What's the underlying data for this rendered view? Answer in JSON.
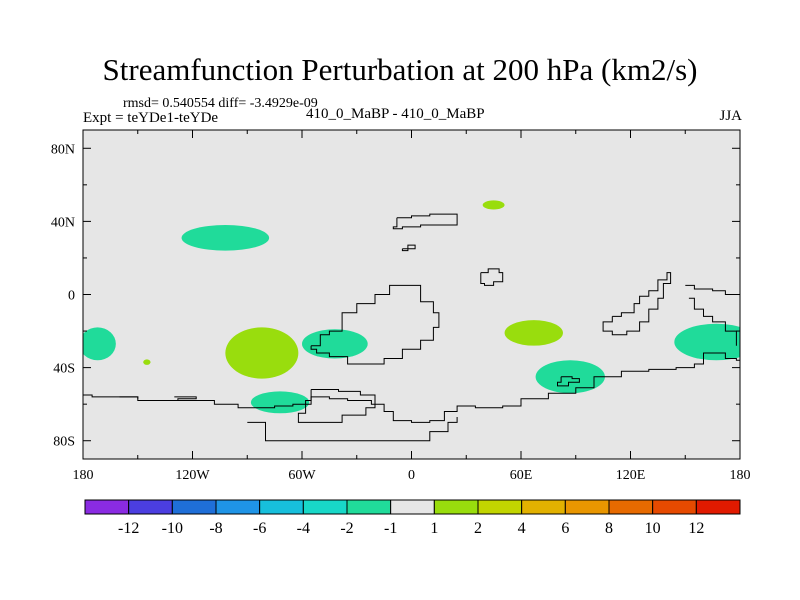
{
  "header": {
    "title": "Streamfunction Perturbation at 200 hPa (km2/s)",
    "stats": "rmsd= 0.540554  diff= -3.4929e-09",
    "expt": "Expt = teYDe1-teYDe",
    "center": "410_0_MaBP - 410_0_MaBP",
    "season": "JJA"
  },
  "chart_data": {
    "type": "heatmap",
    "title": "Streamfunction Perturbation at 200 hPa (km2/s)",
    "x": {
      "range": [
        -180,
        180
      ],
      "ticks": [
        -180,
        -120,
        -60,
        0,
        60,
        120,
        180
      ],
      "tick_labels": [
        "180",
        "120W",
        "60W",
        "0",
        "60E",
        "120E",
        "180"
      ]
    },
    "y": {
      "range": [
        -90,
        90
      ],
      "ticks": [
        80,
        40,
        0,
        -40,
        -80
      ],
      "tick_labels": [
        "80N",
        "40N",
        "0",
        "40S",
        "80S"
      ]
    },
    "background_level": "-1 to 1",
    "anomalies": [
      {
        "lon": -102,
        "lat": 31,
        "rlon": 24,
        "rlat": 7,
        "class": "-2 to -1"
      },
      {
        "lon": -172,
        "lat": -27,
        "rlon": 10,
        "rlat": 9,
        "class": "-2 to -1"
      },
      {
        "lon": -82,
        "lat": -32,
        "rlon": 20,
        "rlat": 14,
        "class": "1 to 2"
      },
      {
        "lon": -145,
        "lat": -37,
        "rlon": 2,
        "rlat": 1.5,
        "class": "1 to 2"
      },
      {
        "lon": -42,
        "lat": -27,
        "rlon": 18,
        "rlat": 8,
        "class": "-2 to -1"
      },
      {
        "lon": -72,
        "lat": -59,
        "rlon": 16,
        "rlat": 6,
        "class": "-2 to -1"
      },
      {
        "lon": 45,
        "lat": 49,
        "rlon": 6,
        "rlat": 2.5,
        "class": "1 to 2"
      },
      {
        "lon": 67,
        "lat": -21,
        "rlon": 16,
        "rlat": 7,
        "class": "1 to 2"
      },
      {
        "lon": 87,
        "lat": -45,
        "rlon": 19,
        "rlat": 9,
        "class": "-2 to -1"
      },
      {
        "lon": 167,
        "lat": -26,
        "rlon": 23,
        "rlat": 10,
        "class": "-2 to -1"
      }
    ],
    "colorbar": {
      "colors": [
        "#8a2be2",
        "#4b3ee0",
        "#1f6fd8",
        "#1f94e6",
        "#17bfdc",
        "#18d8c8",
        "#20db9a",
        "#e6e6e6",
        "#99dd0d",
        "#c2d500",
        "#e2b100",
        "#e99600",
        "#e76a00",
        "#e64a00",
        "#e11a00"
      ],
      "labels": [
        "-12",
        "-10",
        "-8",
        "-6",
        "-4",
        "-2",
        "-1",
        "1",
        "2",
        "4",
        "6",
        "8",
        "10",
        "12"
      ],
      "background_color": "#e6e6e6",
      "negative_color": "#20db9a",
      "positive_color": "#99dd0d"
    },
    "coastline": [
      [
        [
          -180,
          -55
        ],
        [
          -175,
          -56
        ],
        [
          -160,
          -56
        ],
        [
          -150,
          -58
        ],
        [
          -120,
          -58
        ],
        [
          -108,
          -60
        ],
        [
          -95,
          -62
        ],
        [
          -85,
          -62
        ],
        [
          -75,
          -61
        ],
        [
          -65,
          -60
        ],
        [
          -55,
          -56
        ],
        [
          -45,
          -57
        ],
        [
          -35,
          -58
        ],
        [
          -22,
          -60
        ],
        [
          -15,
          -64
        ],
        [
          -10,
          -69
        ],
        [
          0,
          -70
        ],
        [
          10,
          -69
        ],
        [
          18,
          -64
        ],
        [
          25,
          -61
        ],
        [
          35,
          -62
        ],
        [
          50,
          -61
        ],
        [
          60,
          -57
        ],
        [
          75,
          -54
        ],
        [
          90,
          -51
        ],
        [
          100,
          -45
        ],
        [
          115,
          -42
        ],
        [
          130,
          -41
        ],
        [
          145,
          -40
        ],
        [
          155,
          -38
        ],
        [
          160,
          -32
        ],
        [
          165,
          -32
        ],
        [
          172,
          -35
        ],
        [
          178,
          -36
        ],
        [
          180,
          -36
        ]
      ],
      [
        [
          -90,
          -70
        ],
        [
          -80,
          -80
        ],
        [
          0,
          -80
        ],
        [
          10,
          -75
        ],
        [
          20,
          -70
        ],
        [
          25,
          -67
        ]
      ],
      [
        [
          -55,
          -52
        ],
        [
          -40,
          -53
        ],
        [
          -28,
          -55
        ],
        [
          -20,
          -62
        ],
        [
          -25,
          -66
        ],
        [
          -38,
          -70
        ],
        [
          -50,
          -70
        ],
        [
          -62,
          -65
        ],
        [
          -58,
          -58
        ],
        [
          -55,
          -52
        ]
      ],
      [
        [
          -55,
          -28
        ],
        [
          -50,
          -22
        ],
        [
          -45,
          -20
        ],
        [
          -38,
          -10
        ],
        [
          -30,
          -5
        ],
        [
          -20,
          0
        ],
        [
          -12,
          5
        ],
        [
          -5,
          5
        ],
        [
          5,
          -4
        ],
        [
          12,
          -10
        ],
        [
          15,
          -18
        ],
        [
          12,
          -25
        ],
        [
          5,
          -30
        ],
        [
          -5,
          -35
        ],
        [
          -15,
          -38
        ],
        [
          -25,
          -38
        ],
        [
          -35,
          -34
        ],
        [
          -45,
          -32
        ],
        [
          -52,
          -30
        ],
        [
          -55,
          -28
        ]
      ],
      [
        [
          -8,
          42
        ],
        [
          0,
          43
        ],
        [
          10,
          44
        ],
        [
          20,
          44
        ],
        [
          25,
          42
        ],
        [
          25,
          38
        ],
        [
          15,
          38
        ],
        [
          5,
          37
        ],
        [
          -5,
          36
        ],
        [
          -10,
          37
        ],
        [
          -8,
          42
        ]
      ],
      [
        [
          -5,
          25
        ],
        [
          -2,
          27
        ],
        [
          2,
          25
        ],
        [
          -2,
          24
        ],
        [
          -5,
          25
        ]
      ],
      [
        [
          38,
          12
        ],
        [
          42,
          14
        ],
        [
          48,
          12
        ],
        [
          50,
          7
        ],
        [
          45,
          5
        ],
        [
          40,
          6
        ],
        [
          38,
          12
        ]
      ],
      [
        [
          110,
          -12
        ],
        [
          115,
          -10
        ],
        [
          122,
          -5
        ],
        [
          125,
          -1
        ],
        [
          130,
          2
        ],
        [
          135,
          8
        ],
        [
          140,
          12
        ],
        [
          142,
          6
        ],
        [
          138,
          -2
        ],
        [
          135,
          -8
        ],
        [
          130,
          -15
        ],
        [
          125,
          -20
        ],
        [
          118,
          -22
        ],
        [
          110,
          -20
        ],
        [
          105,
          -15
        ],
        [
          110,
          -12
        ]
      ],
      [
        [
          150,
          5
        ],
        [
          155,
          3
        ],
        [
          165,
          2
        ],
        [
          172,
          0
        ],
        [
          180,
          -2
        ]
      ],
      [
        [
          152,
          -2
        ],
        [
          155,
          -8
        ],
        [
          160,
          -12
        ],
        [
          165,
          -15
        ],
        [
          172,
          -20
        ],
        [
          178,
          -28
        ]
      ],
      [
        [
          -160,
          -56
        ],
        [
          -150,
          -57
        ]
      ],
      [
        [
          -130,
          -56
        ],
        [
          -120,
          -56
        ],
        [
          -118,
          -57
        ],
        [
          -128,
          -58
        ]
      ],
      [
        [
          82,
          -45
        ],
        [
          88,
          -46
        ],
        [
          92,
          -48
        ],
        [
          86,
          -50
        ],
        [
          80,
          -48
        ],
        [
          82,
          -45
        ]
      ]
    ]
  }
}
